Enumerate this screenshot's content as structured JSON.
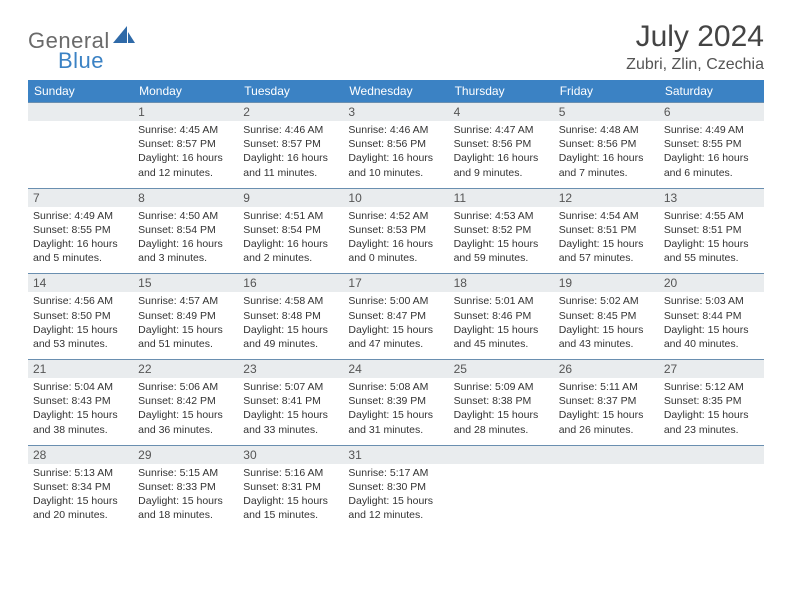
{
  "brand": {
    "word1": "General",
    "word2": "Blue"
  },
  "header": {
    "title": "July 2024",
    "location": "Zubri, Zlin, Czechia"
  },
  "colors": {
    "header_bg": "#3b82c4",
    "header_text": "#ffffff",
    "daynum_bg": "#e9ecee",
    "row_border": "#6a8fb0",
    "body_text": "#333333",
    "title_text": "#444444"
  },
  "columns": [
    "Sunday",
    "Monday",
    "Tuesday",
    "Wednesday",
    "Thursday",
    "Friday",
    "Saturday"
  ],
  "weeks": [
    [
      {
        "blank": true
      },
      {
        "n": "1",
        "sunrise": "4:45 AM",
        "sunset": "8:57 PM",
        "daylight": "16 hours and 12 minutes."
      },
      {
        "n": "2",
        "sunrise": "4:46 AM",
        "sunset": "8:57 PM",
        "daylight": "16 hours and 11 minutes."
      },
      {
        "n": "3",
        "sunrise": "4:46 AM",
        "sunset": "8:56 PM",
        "daylight": "16 hours and 10 minutes."
      },
      {
        "n": "4",
        "sunrise": "4:47 AM",
        "sunset": "8:56 PM",
        "daylight": "16 hours and 9 minutes."
      },
      {
        "n": "5",
        "sunrise": "4:48 AM",
        "sunset": "8:56 PM",
        "daylight": "16 hours and 7 minutes."
      },
      {
        "n": "6",
        "sunrise": "4:49 AM",
        "sunset": "8:55 PM",
        "daylight": "16 hours and 6 minutes."
      }
    ],
    [
      {
        "n": "7",
        "sunrise": "4:49 AM",
        "sunset": "8:55 PM",
        "daylight": "16 hours and 5 minutes."
      },
      {
        "n": "8",
        "sunrise": "4:50 AM",
        "sunset": "8:54 PM",
        "daylight": "16 hours and 3 minutes."
      },
      {
        "n": "9",
        "sunrise": "4:51 AM",
        "sunset": "8:54 PM",
        "daylight": "16 hours and 2 minutes."
      },
      {
        "n": "10",
        "sunrise": "4:52 AM",
        "sunset": "8:53 PM",
        "daylight": "16 hours and 0 minutes."
      },
      {
        "n": "11",
        "sunrise": "4:53 AM",
        "sunset": "8:52 PM",
        "daylight": "15 hours and 59 minutes."
      },
      {
        "n": "12",
        "sunrise": "4:54 AM",
        "sunset": "8:51 PM",
        "daylight": "15 hours and 57 minutes."
      },
      {
        "n": "13",
        "sunrise": "4:55 AM",
        "sunset": "8:51 PM",
        "daylight": "15 hours and 55 minutes."
      }
    ],
    [
      {
        "n": "14",
        "sunrise": "4:56 AM",
        "sunset": "8:50 PM",
        "daylight": "15 hours and 53 minutes."
      },
      {
        "n": "15",
        "sunrise": "4:57 AM",
        "sunset": "8:49 PM",
        "daylight": "15 hours and 51 minutes."
      },
      {
        "n": "16",
        "sunrise": "4:58 AM",
        "sunset": "8:48 PM",
        "daylight": "15 hours and 49 minutes."
      },
      {
        "n": "17",
        "sunrise": "5:00 AM",
        "sunset": "8:47 PM",
        "daylight": "15 hours and 47 minutes."
      },
      {
        "n": "18",
        "sunrise": "5:01 AM",
        "sunset": "8:46 PM",
        "daylight": "15 hours and 45 minutes."
      },
      {
        "n": "19",
        "sunrise": "5:02 AM",
        "sunset": "8:45 PM",
        "daylight": "15 hours and 43 minutes."
      },
      {
        "n": "20",
        "sunrise": "5:03 AM",
        "sunset": "8:44 PM",
        "daylight": "15 hours and 40 minutes."
      }
    ],
    [
      {
        "n": "21",
        "sunrise": "5:04 AM",
        "sunset": "8:43 PM",
        "daylight": "15 hours and 38 minutes."
      },
      {
        "n": "22",
        "sunrise": "5:06 AM",
        "sunset": "8:42 PM",
        "daylight": "15 hours and 36 minutes."
      },
      {
        "n": "23",
        "sunrise": "5:07 AM",
        "sunset": "8:41 PM",
        "daylight": "15 hours and 33 minutes."
      },
      {
        "n": "24",
        "sunrise": "5:08 AM",
        "sunset": "8:39 PM",
        "daylight": "15 hours and 31 minutes."
      },
      {
        "n": "25",
        "sunrise": "5:09 AM",
        "sunset": "8:38 PM",
        "daylight": "15 hours and 28 minutes."
      },
      {
        "n": "26",
        "sunrise": "5:11 AM",
        "sunset": "8:37 PM",
        "daylight": "15 hours and 26 minutes."
      },
      {
        "n": "27",
        "sunrise": "5:12 AM",
        "sunset": "8:35 PM",
        "daylight": "15 hours and 23 minutes."
      }
    ],
    [
      {
        "n": "28",
        "sunrise": "5:13 AM",
        "sunset": "8:34 PM",
        "daylight": "15 hours and 20 minutes."
      },
      {
        "n": "29",
        "sunrise": "5:15 AM",
        "sunset": "8:33 PM",
        "daylight": "15 hours and 18 minutes."
      },
      {
        "n": "30",
        "sunrise": "5:16 AM",
        "sunset": "8:31 PM",
        "daylight": "15 hours and 15 minutes."
      },
      {
        "n": "31",
        "sunrise": "5:17 AM",
        "sunset": "8:30 PM",
        "daylight": "15 hours and 12 minutes."
      },
      {
        "blank": true
      },
      {
        "blank": true
      },
      {
        "blank": true
      }
    ]
  ],
  "labels": {
    "sunrise": "Sunrise: ",
    "sunset": "Sunset: ",
    "daylight": "Daylight: "
  }
}
